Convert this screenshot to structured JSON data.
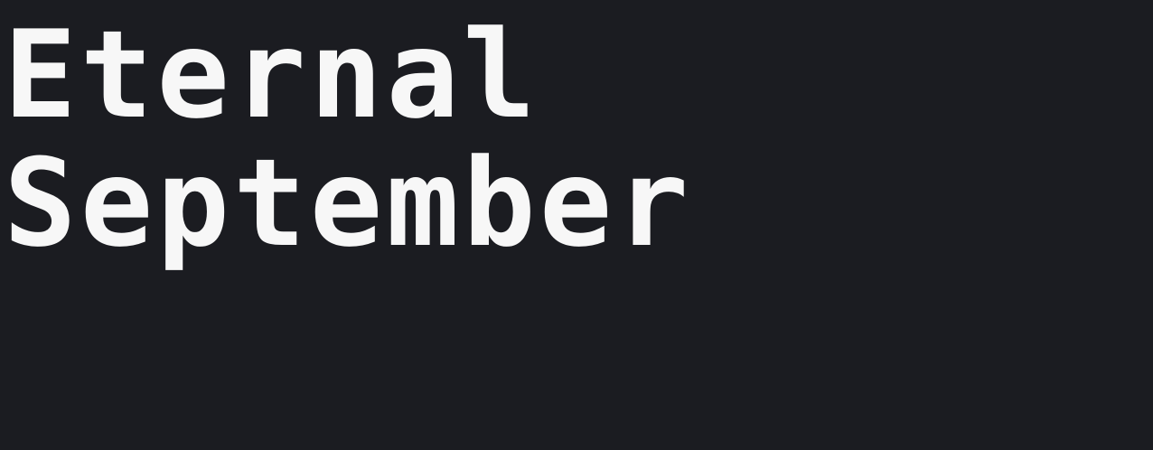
{
  "headline": {
    "line1": "Eternal",
    "line2": "September"
  },
  "colors": {
    "background": "#1b1c21",
    "text": "#f7f7f7"
  }
}
